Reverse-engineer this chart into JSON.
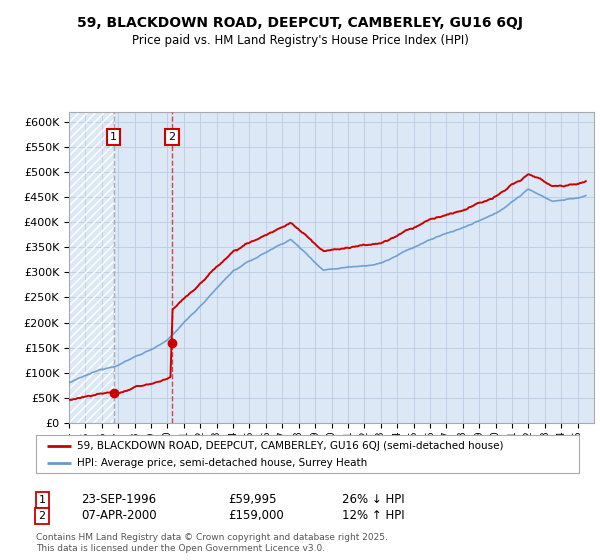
{
  "title_line1": "59, BLACKDOWN ROAD, DEEPCUT, CAMBERLEY, GU16 6QJ",
  "title_line2": "Price paid vs. HM Land Registry's House Price Index (HPI)",
  "background_color": "#ffffff",
  "plot_bg_color": "#dce8f5",
  "hatch_color": "#b8cce4",
  "grid_color": "#b8cce4",
  "purchase1_value": 59995,
  "purchase2_value": 159000,
  "p1_time": 1996.73,
  "p2_time": 2000.27,
  "legend_line1": "59, BLACKDOWN ROAD, DEEPCUT, CAMBERLEY, GU16 6QJ (semi-detached house)",
  "legend_line2": "HPI: Average price, semi-detached house, Surrey Heath",
  "annotation1_date": "23-SEP-1996",
  "annotation1_price": "£59,995",
  "annotation1_hpi": "26% ↓ HPI",
  "annotation2_date": "07-APR-2000",
  "annotation2_price": "£159,000",
  "annotation2_hpi": "12% ↑ HPI",
  "footer": "Contains HM Land Registry data © Crown copyright and database right 2025.\nThis data is licensed under the Open Government Licence v3.0.",
  "red_line_color": "#cc0000",
  "blue_line_color": "#6699cc",
  "grey_dash_color": "#999999",
  "ylim_min": 0,
  "ylim_max": 620000
}
